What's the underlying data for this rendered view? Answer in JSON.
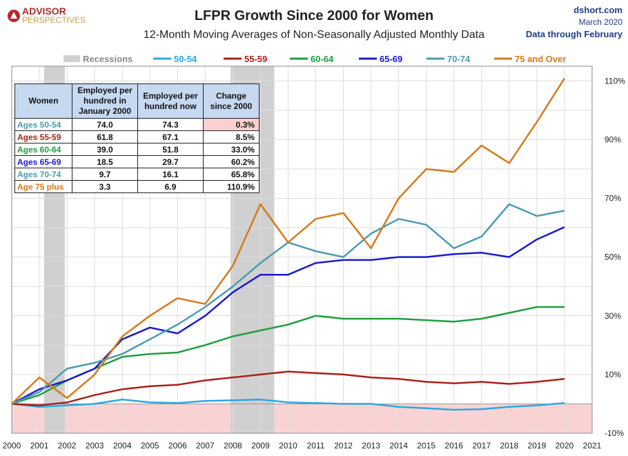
{
  "header": {
    "logo_line1": "ADVISOR",
    "logo_line2": "PERSPECTIVES",
    "source": "dshort.com",
    "date": "March 2020",
    "data_through": "Data through February"
  },
  "table": {
    "headers": [
      "Women",
      "Employed per hundred in January 2000",
      "Employed per hundred now",
      "Change since 2000"
    ],
    "rows": [
      {
        "label": "Ages 50-54",
        "jan2000": "74.0",
        "now": "74.3",
        "change": "0.3%",
        "color": "#4a9bb0",
        "highlight": true
      },
      {
        "label": "Ages 55-59",
        "jan2000": "61.8",
        "now": "67.1",
        "change": "8.5%",
        "color": "#a8201a",
        "highlight": false
      },
      {
        "label": "Ages 60-64",
        "jan2000": "39.0",
        "now": "51.8",
        "change": "33.0%",
        "color": "#1e9e3e",
        "highlight": false
      },
      {
        "label": "Ages 65-69",
        "jan2000": "18.5",
        "now": "29.7",
        "change": "60.2%",
        "color": "#1a1acc",
        "highlight": false
      },
      {
        "label": "Ages 70-74",
        "jan2000": "9.7",
        "now": "16.1",
        "change": "65.8%",
        "color": "#4a9bb0",
        "highlight": false
      },
      {
        "label": "Age 75 plus",
        "jan2000": "3.3",
        "now": "6.9",
        "change": "110.9%",
        "color": "#d47a1a",
        "highlight": false
      }
    ],
    "highlight_color": "#fbd0d0"
  },
  "chart_data": {
    "type": "line",
    "title": "LFPR Growth Since 2000 for Women",
    "subtitle": "12-Month Moving Averages of Non-Seasonally Adjusted Monthly Data",
    "xlim": [
      2000,
      2021
    ],
    "ylim": [
      -10,
      115
    ],
    "x_ticks": [
      "2000",
      "2001",
      "2002",
      "2003",
      "2004",
      "2005",
      "2006",
      "2007",
      "2008",
      "2009",
      "2010",
      "2011",
      "2012",
      "2013",
      "2014",
      "2015",
      "2016",
      "2017",
      "2018",
      "2019",
      "2020",
      "2021"
    ],
    "y_ticks": [
      -10,
      10,
      30,
      50,
      70,
      90,
      110
    ],
    "y_tick_labels": [
      "-10%",
      "10%",
      "30%",
      "50%",
      "70%",
      "90%",
      "110%"
    ],
    "grid": true,
    "legend_position": "top",
    "negative_region_color": "#f9d3d3",
    "recession_label": "Recessions",
    "recession_color": "#d0d0d0",
    "recessions": [
      [
        2001.17,
        2001.92
      ],
      [
        2007.92,
        2009.5
      ]
    ],
    "series": [
      {
        "name": "50-54",
        "color": "#29a9e0",
        "width": 2.5,
        "points": [
          [
            2000,
            0
          ],
          [
            2001,
            -1
          ],
          [
            2002,
            -0.5
          ],
          [
            2003,
            0
          ],
          [
            2004,
            1.5
          ],
          [
            2005,
            0.5
          ],
          [
            2006,
            0.3
          ],
          [
            2007,
            1
          ],
          [
            2008,
            1.2
          ],
          [
            2009,
            1.5
          ],
          [
            2010,
            0.5
          ],
          [
            2011,
            0.3
          ],
          [
            2012,
            0
          ],
          [
            2013,
            0
          ],
          [
            2014,
            -1
          ],
          [
            2015,
            -1.5
          ],
          [
            2016,
            -2
          ],
          [
            2017,
            -1.8
          ],
          [
            2018,
            -1
          ],
          [
            2019,
            -0.5
          ],
          [
            2020,
            0.3
          ]
        ]
      },
      {
        "name": "55-59",
        "color": "#a8201a",
        "width": 2.5,
        "points": [
          [
            2000,
            0
          ],
          [
            2001,
            -0.5
          ],
          [
            2002,
            0.5
          ],
          [
            2003,
            3
          ],
          [
            2004,
            5
          ],
          [
            2005,
            6
          ],
          [
            2006,
            6.5
          ],
          [
            2007,
            8
          ],
          [
            2008,
            9
          ],
          [
            2009,
            10
          ],
          [
            2010,
            11
          ],
          [
            2011,
            10.5
          ],
          [
            2012,
            10
          ],
          [
            2013,
            9
          ],
          [
            2014,
            8.5
          ],
          [
            2015,
            7.5
          ],
          [
            2016,
            7
          ],
          [
            2017,
            7.5
          ],
          [
            2018,
            6.8
          ],
          [
            2019,
            7.5
          ],
          [
            2020,
            8.5
          ]
        ]
      },
      {
        "name": "60-64",
        "color": "#1e9e3e",
        "width": 2.5,
        "points": [
          [
            2000,
            0
          ],
          [
            2001,
            3
          ],
          [
            2002,
            8
          ],
          [
            2003,
            12
          ],
          [
            2004,
            16
          ],
          [
            2005,
            17
          ],
          [
            2006,
            17.5
          ],
          [
            2007,
            20
          ],
          [
            2008,
            23
          ],
          [
            2009,
            25
          ],
          [
            2010,
            27
          ],
          [
            2011,
            30
          ],
          [
            2012,
            29
          ],
          [
            2013,
            29
          ],
          [
            2014,
            29
          ],
          [
            2015,
            28.5
          ],
          [
            2016,
            28
          ],
          [
            2017,
            29
          ],
          [
            2018,
            31
          ],
          [
            2019,
            33
          ],
          [
            2020,
            33
          ]
        ]
      },
      {
        "name": "65-69",
        "color": "#1a1acc",
        "width": 2.5,
        "points": [
          [
            2000,
            0
          ],
          [
            2001,
            5
          ],
          [
            2002,
            8
          ],
          [
            2003,
            12
          ],
          [
            2004,
            22
          ],
          [
            2005,
            26
          ],
          [
            2006,
            24
          ],
          [
            2007,
            30
          ],
          [
            2008,
            38
          ],
          [
            2009,
            44
          ],
          [
            2010,
            44
          ],
          [
            2011,
            48
          ],
          [
            2012,
            49
          ],
          [
            2013,
            49
          ],
          [
            2014,
            50
          ],
          [
            2015,
            50
          ],
          [
            2016,
            51
          ],
          [
            2017,
            51.5
          ],
          [
            2018,
            50
          ],
          [
            2019,
            56
          ],
          [
            2020,
            60.2
          ]
        ]
      },
      {
        "name": "70-74",
        "color": "#4a9bb0",
        "width": 2.5,
        "points": [
          [
            2000,
            0
          ],
          [
            2001,
            4
          ],
          [
            2002,
            12
          ],
          [
            2003,
            14
          ],
          [
            2004,
            17
          ],
          [
            2005,
            22
          ],
          [
            2006,
            27
          ],
          [
            2007,
            33
          ],
          [
            2008,
            40
          ],
          [
            2009,
            48
          ],
          [
            2010,
            55
          ],
          [
            2011,
            52
          ],
          [
            2012,
            50
          ],
          [
            2013,
            58
          ],
          [
            2014,
            63
          ],
          [
            2015,
            61
          ],
          [
            2016,
            53
          ],
          [
            2017,
            57
          ],
          [
            2018,
            68
          ],
          [
            2019,
            64
          ],
          [
            2020,
            65.8
          ]
        ]
      },
      {
        "name": "75 and Over",
        "color": "#d47a1a",
        "width": 2.5,
        "points": [
          [
            2000,
            0
          ],
          [
            2001,
            9
          ],
          [
            2002,
            2
          ],
          [
            2003,
            10
          ],
          [
            2004,
            23
          ],
          [
            2005,
            30
          ],
          [
            2006,
            36
          ],
          [
            2007,
            34
          ],
          [
            2008,
            47
          ],
          [
            2009,
            68
          ],
          [
            2010,
            55
          ],
          [
            2011,
            63
          ],
          [
            2012,
            65
          ],
          [
            2013,
            53
          ],
          [
            2014,
            70
          ],
          [
            2015,
            80
          ],
          [
            2016,
            79
          ],
          [
            2017,
            88
          ],
          [
            2018,
            82
          ],
          [
            2019,
            96
          ],
          [
            2020,
            110.9
          ]
        ]
      }
    ]
  }
}
